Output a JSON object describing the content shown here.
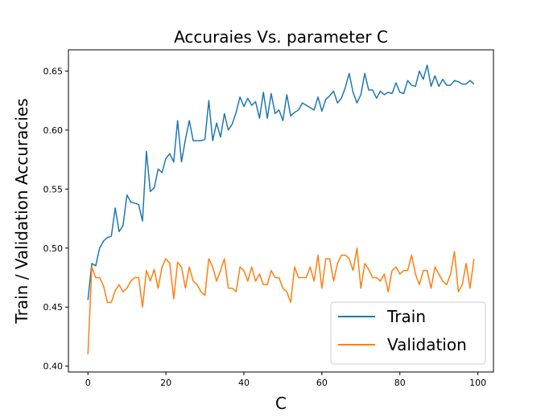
{
  "chart_data": {
    "type": "line",
    "title": "Accuraies Vs. parameter C",
    "xlabel": "C",
    "ylabel": "Train / Validation Accuracies",
    "xlim": [
      -5,
      104
    ],
    "ylim": [
      0.395,
      0.668
    ],
    "xticks": [
      0,
      20,
      40,
      60,
      80,
      100
    ],
    "yticks": [
      0.4,
      0.45,
      0.5,
      0.55,
      0.6,
      0.65
    ],
    "xtick_labels": [
      "0",
      "20",
      "40",
      "60",
      "80",
      "100"
    ],
    "ytick_labels": [
      "0.40",
      "0.45",
      "0.50",
      "0.55",
      "0.60",
      "0.65"
    ],
    "grid": false,
    "legend_position": "lower-right",
    "series": [
      {
        "name": "Train",
        "color": "#1f77b4",
        "values": [
          0.456,
          0.487,
          0.485,
          0.5,
          0.506,
          0.509,
          0.51,
          0.534,
          0.514,
          0.519,
          0.545,
          0.539,
          0.538,
          0.537,
          0.523,
          0.582,
          0.548,
          0.551,
          0.567,
          0.564,
          0.576,
          0.58,
          0.573,
          0.608,
          0.573,
          0.592,
          0.608,
          0.591,
          0.591,
          0.591,
          0.592,
          0.625,
          0.591,
          0.606,
          0.594,
          0.614,
          0.6,
          0.605,
          0.615,
          0.628,
          0.62,
          0.627,
          0.621,
          0.624,
          0.61,
          0.632,
          0.61,
          0.631,
          0.614,
          0.617,
          0.608,
          0.63,
          0.612,
          0.615,
          0.617,
          0.623,
          0.621,
          0.619,
          0.617,
          0.628,
          0.616,
          0.626,
          0.629,
          0.633,
          0.623,
          0.627,
          0.636,
          0.648,
          0.632,
          0.623,
          0.63,
          0.648,
          0.634,
          0.634,
          0.627,
          0.633,
          0.63,
          0.632,
          0.631,
          0.64,
          0.632,
          0.631,
          0.642,
          0.638,
          0.637,
          0.65,
          0.643,
          0.655,
          0.637,
          0.646,
          0.637,
          0.643,
          0.638,
          0.638,
          0.642,
          0.641,
          0.639,
          0.639,
          0.642,
          0.639
        ]
      },
      {
        "name": "Validation",
        "color": "#ff7f0e",
        "values": [
          0.41,
          0.484,
          0.475,
          0.475,
          0.468,
          0.454,
          0.454,
          0.464,
          0.469,
          0.463,
          0.466,
          0.472,
          0.475,
          0.475,
          0.45,
          0.481,
          0.472,
          0.482,
          0.466,
          0.484,
          0.491,
          0.487,
          0.457,
          0.488,
          0.484,
          0.466,
          0.484,
          0.472,
          0.469,
          0.463,
          0.46,
          0.491,
          0.484,
          0.472,
          0.481,
          0.491,
          0.466,
          0.466,
          0.463,
          0.484,
          0.481,
          0.472,
          0.484,
          0.472,
          0.478,
          0.469,
          0.469,
          0.481,
          0.475,
          0.475,
          0.466,
          0.463,
          0.454,
          0.484,
          0.475,
          0.475,
          0.475,
          0.484,
          0.472,
          0.494,
          0.466,
          0.491,
          0.491,
          0.472,
          0.487,
          0.494,
          0.494,
          0.491,
          0.481,
          0.5,
          0.466,
          0.487,
          0.482,
          0.475,
          0.475,
          0.472,
          0.478,
          0.463,
          0.481,
          0.484,
          0.478,
          0.481,
          0.481,
          0.494,
          0.478,
          0.469,
          0.481,
          0.481,
          0.466,
          0.484,
          0.478,
          0.472,
          0.469,
          0.478,
          0.497,
          0.463,
          0.469,
          0.487,
          0.466,
          0.491
        ]
      }
    ]
  }
}
